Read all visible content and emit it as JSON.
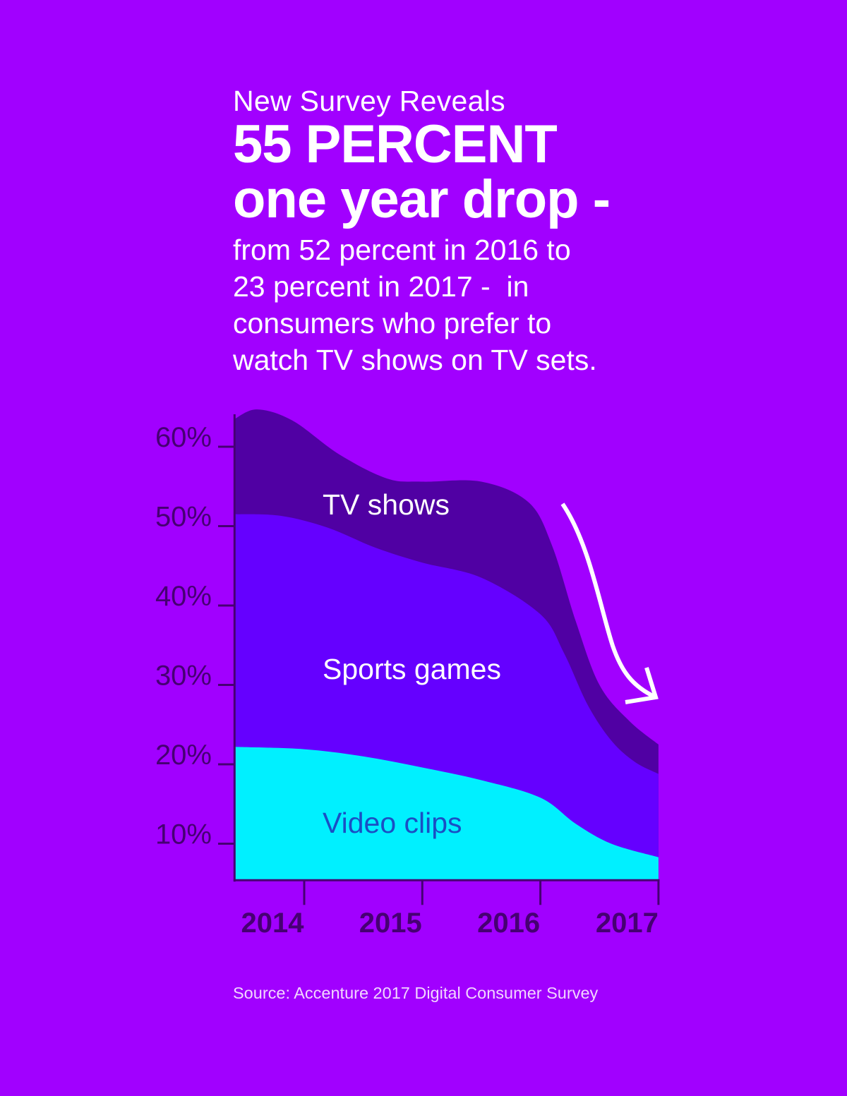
{
  "header": {
    "kicker": "New Survey Reveals",
    "headline_line1": "55 PERCENT",
    "headline_line2": "one year drop -",
    "sub_lines": [
      "from 52 percent in 2016 to",
      "23 percent in 2017 -  in",
      "consumers who prefer to",
      "watch TV shows on TV sets."
    ]
  },
  "source": "Source: Accenture 2017 Digital Consumer Survey",
  "colors": {
    "background": "#A100FF",
    "tv_shows": "#5000A3",
    "sports_games": "#6500FF",
    "video_clips": "#00F0FF",
    "axis": "#460073",
    "arrow": "#ffffff"
  },
  "chart_data": {
    "type": "area",
    "stacked": true,
    "title": "",
    "xlabel": "",
    "ylabel": "",
    "x_ticks": [
      "2014",
      "2015",
      "2016",
      "2017"
    ],
    "x_tick_values": [
      2014,
      2015,
      2016,
      2017
    ],
    "xlim": [
      2013.41,
      2017
    ],
    "y_ticks": [
      "10%",
      "20%",
      "30%",
      "40%",
      "50%",
      "60%"
    ],
    "y_tick_values": [
      10,
      20,
      30,
      40,
      50,
      60
    ],
    "ylim": [
      5.4,
      66
    ],
    "grid": false,
    "legend": "inline labels",
    "annotation": "arrow pointing down toward 2017",
    "series": [
      {
        "name": "TV shows",
        "label": "TV shows",
        "x": [
          2013.41,
          2013.6,
          2013.9,
          2014.3,
          2014.7,
          2015.0,
          2015.5,
          2015.9,
          2016.1,
          2016.3,
          2016.5,
          2016.75,
          2017.0
        ],
        "top": [
          63.5,
          64.7,
          63.3,
          59,
          56,
          55.6,
          55.6,
          53,
          47.5,
          38,
          30,
          25.5,
          22.5
        ]
      },
      {
        "name": "Sports games",
        "label": "Sports games",
        "x": [
          2013.41,
          2013.8,
          2014.2,
          2014.6,
          2015.0,
          2015.5,
          2016.0,
          2016.2,
          2016.4,
          2016.6,
          2016.8,
          2017.0
        ],
        "top": [
          51.5,
          51.3,
          49.8,
          47.3,
          45.4,
          43.5,
          38.9,
          34,
          27.5,
          23,
          20.3,
          18.8
        ]
      },
      {
        "name": "Video clips",
        "label": "Video clips",
        "x": [
          2013.41,
          2014.0,
          2014.5,
          2015.0,
          2015.5,
          2016.0,
          2016.3,
          2016.6,
          2017.0
        ],
        "top": [
          22.2,
          21.9,
          21,
          19.6,
          18,
          15.8,
          12.5,
          10,
          8.3
        ]
      }
    ]
  }
}
